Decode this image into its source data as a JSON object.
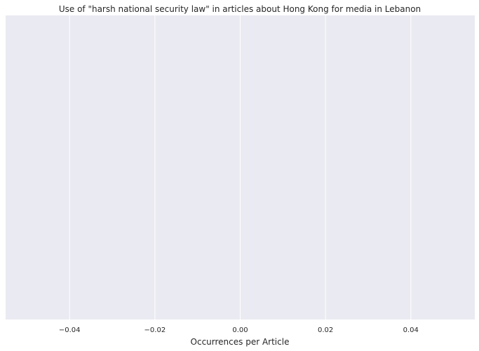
{
  "chart_data": {
    "type": "bar",
    "orientation": "horizontal",
    "title": "Use of \"harsh national security law\" in articles about Hong Kong for media in Lebanon",
    "xlabel": "Occurrences per Article",
    "ylabel": "",
    "categories": [],
    "values": [],
    "xlim": [
      -0.055,
      0.055
    ],
    "xticks": [
      -0.04,
      -0.02,
      0.0,
      0.02,
      0.04
    ],
    "xtick_labels": [
      "−0.04",
      "−0.02",
      "0.00",
      "0.02",
      "0.04"
    ],
    "grid": true,
    "background_color": "#EAEAF2",
    "grid_color": "#FFFFFF"
  }
}
